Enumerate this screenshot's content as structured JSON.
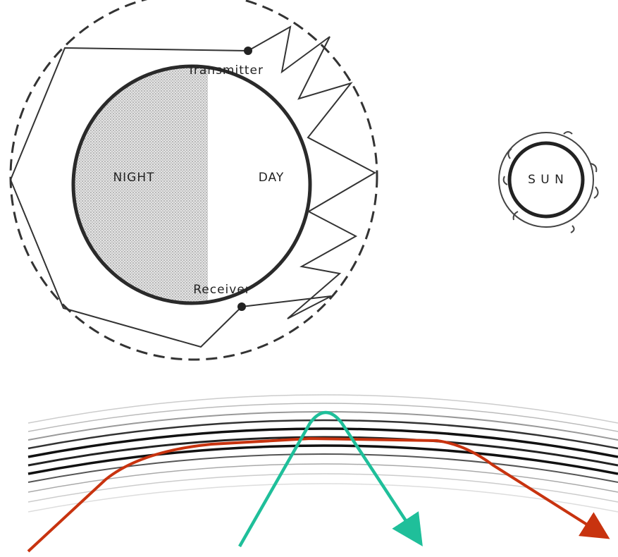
{
  "labels": {
    "transmitter": "Transmitter",
    "night": "NIGHT",
    "day": "DAY",
    "receiver": "Receiver",
    "sun": "S U N"
  }
}
